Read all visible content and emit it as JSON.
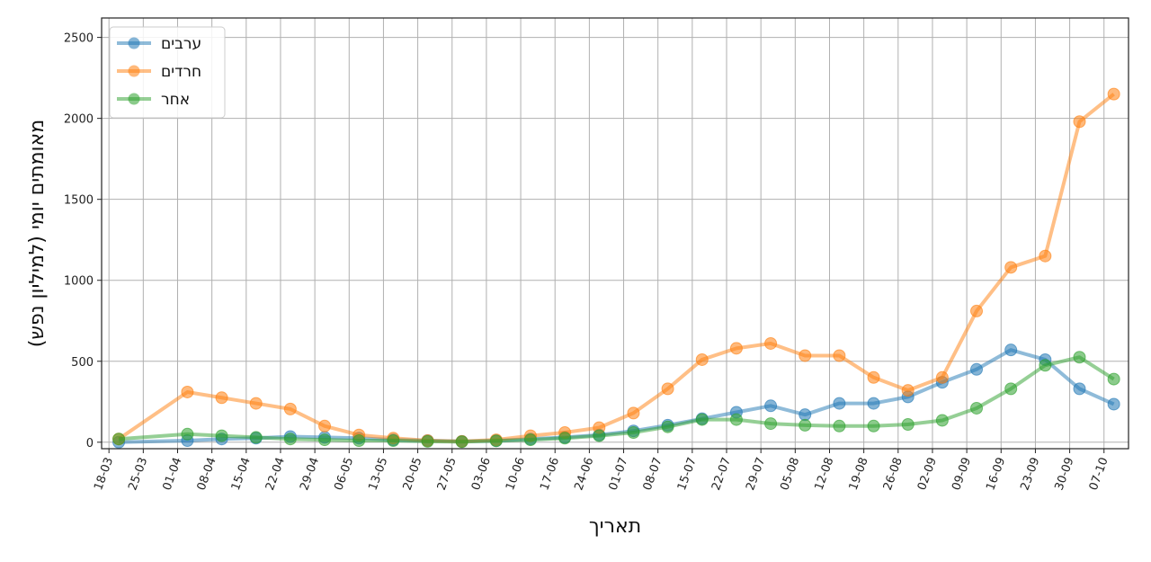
{
  "chart_data": {
    "type": "line",
    "xlabel": "תאריך",
    "ylabel": "מאומתים יומי (למיליון נפש)",
    "ylim": [
      -40,
      2620
    ],
    "yticks": [
      0,
      500,
      1000,
      1500,
      2000,
      2500
    ],
    "xticks": [
      "18-03",
      "25-03",
      "01-04",
      "08-04",
      "15-04",
      "22-04",
      "29-04",
      "06-05",
      "13-05",
      "20-05",
      "27-05",
      "03-06",
      "10-06",
      "17-06",
      "24-06",
      "01-07",
      "08-07",
      "15-07",
      "22-07",
      "29-07",
      "05-08",
      "12-08",
      "19-08",
      "26-08",
      "02-09",
      "09-09",
      "16-09",
      "23-09",
      "30-09",
      "07-10"
    ],
    "x_range_days": [
      -3.5,
      206
    ],
    "grid": true,
    "legend_position": "top-left",
    "marker": "circle",
    "colors": {
      "arabs": "#1f77b4",
      "haredim": "#ff7f0e",
      "other": "#2ca02c"
    },
    "x_days": [
      0,
      14,
      21,
      28,
      35,
      42,
      49,
      56,
      63,
      70,
      77,
      84,
      91,
      98,
      105,
      112,
      119,
      126,
      133,
      140,
      147,
      154,
      161,
      168,
      175,
      182,
      189,
      196,
      203
    ],
    "x_dates": [
      "20-03",
      "03-04",
      "10-04",
      "17-04",
      "24-04",
      "01-05",
      "08-05",
      "15-05",
      "22-05",
      "29-05",
      "05-06",
      "12-06",
      "19-06",
      "26-06",
      "03-07",
      "10-07",
      "17-07",
      "24-07",
      "31-07",
      "07-08",
      "14-08",
      "21-08",
      "28-08",
      "04-09",
      "11-09",
      "18-09",
      "25-09",
      "02-10",
      "09-10"
    ],
    "series": [
      {
        "name": "ערבים",
        "key": "arabs",
        "values": [
          0,
          10,
          20,
          25,
          35,
          30,
          25,
          15,
          10,
          5,
          10,
          20,
          30,
          45,
          70,
          105,
          145,
          185,
          225,
          170,
          240,
          240,
          280,
          370,
          450,
          570,
          510,
          330,
          235
        ]
      },
      {
        "name": "חרדים",
        "key": "haredim",
        "values": [
          20,
          310,
          275,
          240,
          205,
          100,
          45,
          25,
          10,
          5,
          15,
          40,
          60,
          90,
          180,
          330,
          510,
          580,
          610,
          535,
          535,
          400,
          320,
          400,
          810,
          1080,
          1150,
          1980,
          2150
        ]
      },
      {
        "name": "אחר",
        "key": "other",
        "values": [
          20,
          50,
          40,
          30,
          20,
          15,
          10,
          10,
          5,
          3,
          8,
          15,
          25,
          40,
          60,
          95,
          140,
          140,
          115,
          105,
          100,
          100,
          110,
          135,
          210,
          330,
          475,
          525,
          390
        ]
      }
    ]
  }
}
